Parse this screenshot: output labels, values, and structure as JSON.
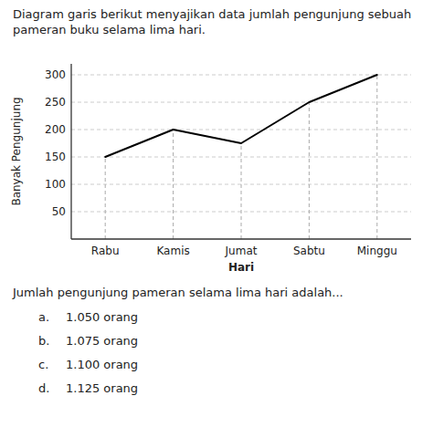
{
  "chart_data": {
    "type": "line",
    "title": "Diagram garis berikut menyajikan data jumlah pengunjung sebuah\npameran buku selama lima hari.",
    "categories": [
      "Rabu",
      "Kamis",
      "Jumat",
      "Sabtu",
      "Minggu"
    ],
    "values": [
      150,
      200,
      175,
      250,
      300
    ],
    "color": "#000000",
    "x_label": "Hari",
    "y_label": "Banyak Pengunjung",
    "ylim": [
      0,
      320
    ],
    "yticks": [
      50,
      100,
      150,
      200,
      250,
      300
    ],
    "grid": true,
    "line_style": "solid",
    "annotations": [
      "Jumlah pengunjung pameran selama lima hari adalah...",
      "a.",
      "1.050 orang",
      "b.",
      "1.075 orang",
      "c.",
      "1.100 orang",
      "d.",
      "1.125 orang"
    ]
  }
}
